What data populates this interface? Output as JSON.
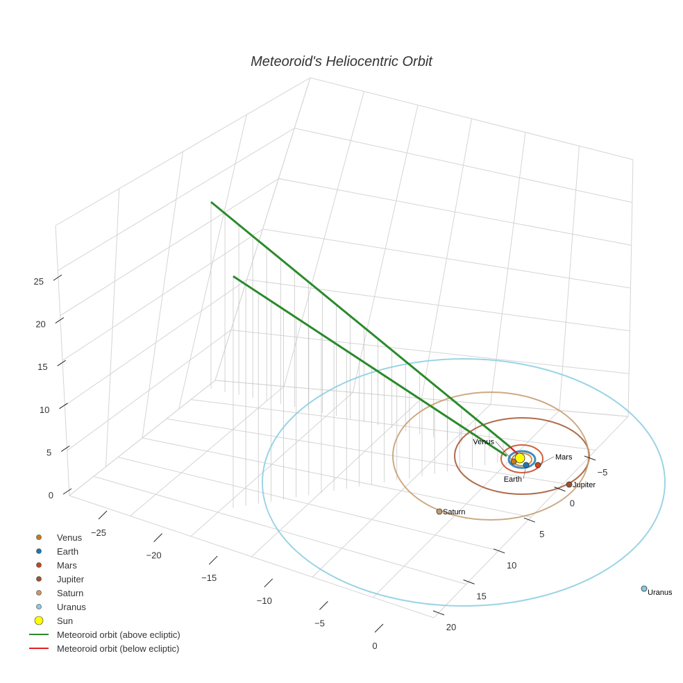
{
  "chart_data": {
    "type": "scatter3d",
    "title": "Meteoroid's Heliocentric Orbit",
    "axes": {
      "x": {
        "ticks": [
          "−25",
          "−20",
          "−15",
          "−10",
          "−5",
          "0"
        ],
        "range": [
          -28,
          2
        ]
      },
      "y": {
        "ticks": [
          "−5",
          "0",
          "5",
          "10",
          "15",
          "20"
        ],
        "range": [
          -8,
          21
        ]
      },
      "z": {
        "ticks": [
          "0",
          "5",
          "10",
          "15",
          "20",
          "25"
        ],
        "range": [
          -1,
          29
        ]
      }
    },
    "planets": [
      {
        "name": "Venus",
        "color": "#c77a1a",
        "orbit_radius_au": 0.72
      },
      {
        "name": "Earth",
        "color": "#1f77b4",
        "orbit_radius_au": 1.0
      },
      {
        "name": "Mars",
        "color": "#c8451a",
        "orbit_radius_au": 1.52
      },
      {
        "name": "Jupiter",
        "color": "#a0522d",
        "orbit_radius_au": 5.2
      },
      {
        "name": "Saturn",
        "color": "#c49a6c",
        "orbit_radius_au": 9.5
      },
      {
        "name": "Uranus",
        "color": "#87cde0",
        "orbit_radius_au": 19.2
      }
    ],
    "sun": {
      "name": "Sun",
      "color": "#ffff00"
    },
    "legend": [
      {
        "label": "Venus",
        "kind": "dot",
        "color": "#c77a1a"
      },
      {
        "label": "Earth",
        "kind": "dot",
        "color": "#1f77b4"
      },
      {
        "label": "Mars",
        "kind": "dot",
        "color": "#c8451a"
      },
      {
        "label": "Jupiter",
        "kind": "dot",
        "color": "#a0522d"
      },
      {
        "label": "Saturn",
        "kind": "dot",
        "color": "#c49a6c"
      },
      {
        "label": "Uranus",
        "kind": "dot",
        "color": "#87cde0"
      },
      {
        "label": "Sun",
        "kind": "sun",
        "color": "#ffff00"
      },
      {
        "label": "Meteoroid orbit (above ecliptic)",
        "kind": "line",
        "color": "#2a8a2a"
      },
      {
        "label": "Meteoroid orbit (below ecliptic)",
        "kind": "line",
        "color": "#e02020"
      }
    ],
    "legend_position": "bottom-left"
  }
}
